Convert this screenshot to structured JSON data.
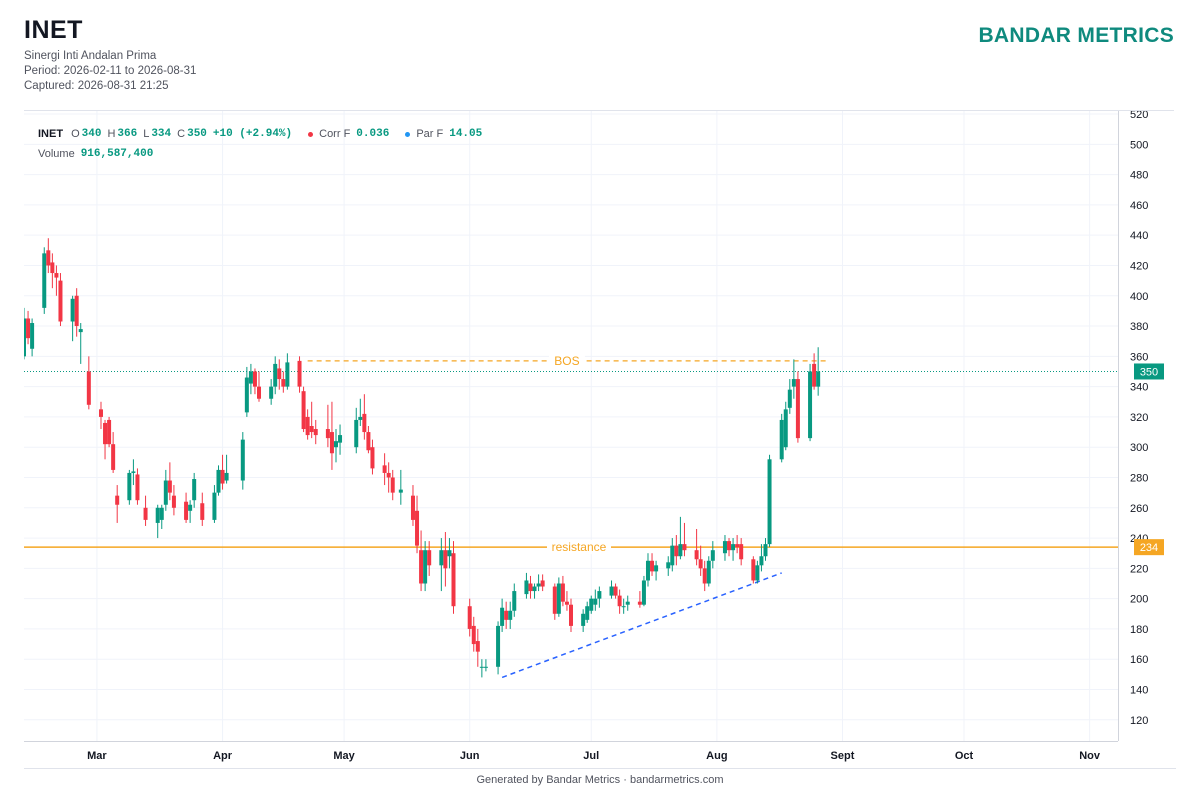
{
  "header": {
    "ticker": "INET",
    "company": "Sinergi Inti Andalan Prima",
    "period": "Period: 2026-02-11 to 2026-08-31",
    "captured": "Captured: 2026-08-31 21:25",
    "brand": "BANDAR METRICS"
  },
  "legend": {
    "symbol": "INET",
    "o_label": "O",
    "o_value": "340",
    "h_label": "H",
    "h_value": "366",
    "l_label": "L",
    "l_value": "334",
    "c_label": "C",
    "c_value": "350",
    "change": "+10 (+2.94%)",
    "corr_label": "Corr F",
    "corr_value": "0.036",
    "par_label": "Par F",
    "par_value": "14.05",
    "volume_label": "Volume",
    "volume_value": "916,587,400"
  },
  "footer": {
    "text": "Generated by Bandar Metrics · bandarmetrics.com"
  },
  "colors": {
    "up": "#089981",
    "down": "#f23645",
    "resistance": "#f5a623",
    "bos": "#f5a623",
    "trend": "#2962ff",
    "last": "#089981",
    "brand": "#0f8a7e"
  },
  "chart_data": {
    "type": "candlestick",
    "ylim": [
      106,
      522
    ],
    "yticks": [
      120,
      140,
      160,
      180,
      200,
      220,
      240,
      260,
      280,
      300,
      320,
      340,
      360,
      380,
      400,
      420,
      440,
      460,
      480,
      500,
      520
    ],
    "xlim": [
      "2026-02-11",
      "2026-11-08"
    ],
    "xticks": [
      {
        "date": "2026-03-01",
        "label": "Mar"
      },
      {
        "date": "2026-04-01",
        "label": "Apr"
      },
      {
        "date": "2026-05-01",
        "label": "May"
      },
      {
        "date": "2026-06-01",
        "label": "Jun"
      },
      {
        "date": "2026-07-01",
        "label": "Jul"
      },
      {
        "date": "2026-08-01",
        "label": "Aug"
      },
      {
        "date": "2026-09-01",
        "label": "Sept"
      },
      {
        "date": "2026-10-01",
        "label": "Oct"
      },
      {
        "date": "2026-11-01",
        "label": "Nov"
      }
    ],
    "last_price": 350,
    "resistance": {
      "label": "resistance",
      "value": 234
    },
    "bos": {
      "label": "BOS",
      "value": 357,
      "from": "2026-04-22",
      "to": "2026-08-28"
    },
    "trendline": [
      {
        "date": "2026-06-09",
        "value": 148
      },
      {
        "date": "2026-08-17",
        "value": 217
      }
    ],
    "candles": [
      {
        "d": "2026-02-11",
        "o": 360,
        "h": 392,
        "l": 358,
        "c": 385
      },
      {
        "d": "2026-02-12",
        "o": 385,
        "h": 390,
        "l": 368,
        "c": 372
      },
      {
        "d": "2026-02-13",
        "o": 365,
        "h": 385,
        "l": 360,
        "c": 382
      },
      {
        "d": "2026-02-16",
        "o": 392,
        "h": 432,
        "l": 388,
        "c": 428
      },
      {
        "d": "2026-02-17",
        "o": 430,
        "h": 438,
        "l": 415,
        "c": 420
      },
      {
        "d": "2026-02-18",
        "o": 422,
        "h": 428,
        "l": 405,
        "c": 415
      },
      {
        "d": "2026-02-19",
        "o": 415,
        "h": 420,
        "l": 400,
        "c": 412
      },
      {
        "d": "2026-02-20",
        "o": 410,
        "h": 415,
        "l": 380,
        "c": 383
      },
      {
        "d": "2026-02-23",
        "o": 383,
        "h": 400,
        "l": 370,
        "c": 398
      },
      {
        "d": "2026-02-24",
        "o": 400,
        "h": 405,
        "l": 373,
        "c": 380
      },
      {
        "d": "2026-02-25",
        "o": 376,
        "h": 382,
        "l": 355,
        "c": 378
      },
      {
        "d": "2026-02-27",
        "o": 350,
        "h": 360,
        "l": 325,
        "c": 328
      },
      {
        "d": "2026-03-02",
        "o": 325,
        "h": 330,
        "l": 312,
        "c": 320
      },
      {
        "d": "2026-03-03",
        "o": 316,
        "h": 318,
        "l": 292,
        "c": 302
      },
      {
        "d": "2026-03-04",
        "o": 318,
        "h": 320,
        "l": 300,
        "c": 302
      },
      {
        "d": "2026-03-05",
        "o": 302,
        "h": 310,
        "l": 283,
        "c": 285
      },
      {
        "d": "2026-03-06",
        "o": 268,
        "h": 275,
        "l": 250,
        "c": 262
      },
      {
        "d": "2026-03-09",
        "o": 265,
        "h": 285,
        "l": 262,
        "c": 283
      },
      {
        "d": "2026-03-10",
        "o": 283,
        "h": 292,
        "l": 275,
        "c": 284
      },
      {
        "d": "2026-03-11",
        "o": 282,
        "h": 286,
        "l": 262,
        "c": 265
      },
      {
        "d": "2026-03-13",
        "o": 260,
        "h": 268,
        "l": 248,
        "c": 252
      },
      {
        "d": "2026-03-16",
        "o": 250,
        "h": 262,
        "l": 240,
        "c": 260
      },
      {
        "d": "2026-03-17",
        "o": 252,
        "h": 262,
        "l": 246,
        "c": 260
      },
      {
        "d": "2026-03-18",
        "o": 262,
        "h": 285,
        "l": 258,
        "c": 278
      },
      {
        "d": "2026-03-19",
        "o": 278,
        "h": 290,
        "l": 265,
        "c": 270
      },
      {
        "d": "2026-03-20",
        "o": 268,
        "h": 275,
        "l": 255,
        "c": 260
      },
      {
        "d": "2026-03-23",
        "o": 264,
        "h": 270,
        "l": 250,
        "c": 252
      },
      {
        "d": "2026-03-24",
        "o": 258,
        "h": 265,
        "l": 250,
        "c": 262
      },
      {
        "d": "2026-03-25",
        "o": 265,
        "h": 283,
        "l": 260,
        "c": 279
      },
      {
        "d": "2026-03-27",
        "o": 263,
        "h": 270,
        "l": 248,
        "c": 252
      },
      {
        "d": "2026-03-30",
        "o": 252,
        "h": 275,
        "l": 250,
        "c": 270
      },
      {
        "d": "2026-03-31",
        "o": 270,
        "h": 288,
        "l": 268,
        "c": 285
      },
      {
        "d": "2026-04-01",
        "o": 285,
        "h": 295,
        "l": 272,
        "c": 276
      },
      {
        "d": "2026-04-02",
        "o": 278,
        "h": 295,
        "l": 276,
        "c": 283
      },
      {
        "d": "2026-04-06",
        "o": 278,
        "h": 310,
        "l": 272,
        "c": 305
      },
      {
        "d": "2026-04-07",
        "o": 323,
        "h": 353,
        "l": 320,
        "c": 346
      },
      {
        "d": "2026-04-08",
        "o": 342,
        "h": 355,
        "l": 335,
        "c": 350
      },
      {
        "d": "2026-04-09",
        "o": 350,
        "h": 352,
        "l": 335,
        "c": 340
      },
      {
        "d": "2026-04-10",
        "o": 340,
        "h": 350,
        "l": 330,
        "c": 332
      },
      {
        "d": "2026-04-13",
        "o": 332,
        "h": 345,
        "l": 328,
        "c": 340
      },
      {
        "d": "2026-04-14",
        "o": 340,
        "h": 360,
        "l": 335,
        "c": 355
      },
      {
        "d": "2026-04-15",
        "o": 352,
        "h": 358,
        "l": 338,
        "c": 345
      },
      {
        "d": "2026-04-16",
        "o": 345,
        "h": 350,
        "l": 336,
        "c": 340
      },
      {
        "d": "2026-04-17",
        "o": 340,
        "h": 362,
        "l": 338,
        "c": 356
      },
      {
        "d": "2026-04-20",
        "o": 357,
        "h": 360,
        "l": 336,
        "c": 340
      },
      {
        "d": "2026-04-21",
        "o": 337,
        "h": 340,
        "l": 310,
        "c": 312
      },
      {
        "d": "2026-04-22",
        "o": 320,
        "h": 325,
        "l": 305,
        "c": 308
      },
      {
        "d": "2026-04-23",
        "o": 314,
        "h": 330,
        "l": 306,
        "c": 310
      },
      {
        "d": "2026-04-24",
        "o": 312,
        "h": 318,
        "l": 302,
        "c": 308
      },
      {
        "d": "2026-04-27",
        "o": 312,
        "h": 328,
        "l": 300,
        "c": 306
      },
      {
        "d": "2026-04-28",
        "o": 310,
        "h": 330,
        "l": 285,
        "c": 296
      },
      {
        "d": "2026-04-29",
        "o": 300,
        "h": 312,
        "l": 290,
        "c": 304
      },
      {
        "d": "2026-04-30",
        "o": 303,
        "h": 315,
        "l": 295,
        "c": 308
      },
      {
        "d": "2026-05-04",
        "o": 300,
        "h": 326,
        "l": 296,
        "c": 318
      },
      {
        "d": "2026-05-05",
        "o": 318,
        "h": 332,
        "l": 314,
        "c": 320
      },
      {
        "d": "2026-05-06",
        "o": 322,
        "h": 335,
        "l": 305,
        "c": 310
      },
      {
        "d": "2026-05-07",
        "o": 310,
        "h": 314,
        "l": 296,
        "c": 298
      },
      {
        "d": "2026-05-08",
        "o": 300,
        "h": 305,
        "l": 282,
        "c": 286
      },
      {
        "d": "2026-05-11",
        "o": 288,
        "h": 296,
        "l": 275,
        "c": 283
      },
      {
        "d": "2026-05-12",
        "o": 283,
        "h": 290,
        "l": 270,
        "c": 280
      },
      {
        "d": "2026-05-13",
        "o": 280,
        "h": 285,
        "l": 265,
        "c": 270
      },
      {
        "d": "2026-05-15",
        "o": 270,
        "h": 285,
        "l": 262,
        "c": 272
      },
      {
        "d": "2026-05-18",
        "o": 268,
        "h": 275,
        "l": 248,
        "c": 252
      },
      {
        "d": "2026-05-19",
        "o": 258,
        "h": 268,
        "l": 230,
        "c": 235
      },
      {
        "d": "2026-05-20",
        "o": 232,
        "h": 245,
        "l": 205,
        "c": 210
      },
      {
        "d": "2026-05-21",
        "o": 210,
        "h": 238,
        "l": 205,
        "c": 232
      },
      {
        "d": "2026-05-22",
        "o": 232,
        "h": 238,
        "l": 215,
        "c": 222
      },
      {
        "d": "2026-05-25",
        "o": 222,
        "h": 240,
        "l": 205,
        "c": 232
      },
      {
        "d": "2026-05-26",
        "o": 232,
        "h": 244,
        "l": 208,
        "c": 220
      },
      {
        "d": "2026-05-27",
        "o": 228,
        "h": 240,
        "l": 220,
        "c": 232
      },
      {
        "d": "2026-05-28",
        "o": 230,
        "h": 238,
        "l": 190,
        "c": 195
      },
      {
        "d": "2026-06-01",
        "o": 195,
        "h": 200,
        "l": 175,
        "c": 180
      },
      {
        "d": "2026-06-02",
        "o": 182,
        "h": 188,
        "l": 165,
        "c": 170
      },
      {
        "d": "2026-06-03",
        "o": 172,
        "h": 180,
        "l": 155,
        "c": 165
      },
      {
        "d": "2026-06-04",
        "o": 155,
        "h": 160,
        "l": 148,
        "c": 155
      },
      {
        "d": "2026-06-05",
        "o": 155,
        "h": 160,
        "l": 152,
        "c": 155
      },
      {
        "d": "2026-06-08",
        "o": 155,
        "h": 185,
        "l": 150,
        "c": 182
      },
      {
        "d": "2026-06-09",
        "o": 182,
        "h": 200,
        "l": 178,
        "c": 194
      },
      {
        "d": "2026-06-10",
        "o": 192,
        "h": 198,
        "l": 180,
        "c": 186
      },
      {
        "d": "2026-06-11",
        "o": 186,
        "h": 198,
        "l": 180,
        "c": 192
      },
      {
        "d": "2026-06-12",
        "o": 192,
        "h": 210,
        "l": 188,
        "c": 205
      },
      {
        "d": "2026-06-15",
        "o": 203,
        "h": 217,
        "l": 200,
        "c": 212
      },
      {
        "d": "2026-06-16",
        "o": 210,
        "h": 215,
        "l": 200,
        "c": 205
      },
      {
        "d": "2026-06-17",
        "o": 205,
        "h": 210,
        "l": 200,
        "c": 208
      },
      {
        "d": "2026-06-18",
        "o": 208,
        "h": 216,
        "l": 205,
        "c": 210
      },
      {
        "d": "2026-06-19",
        "o": 212,
        "h": 216,
        "l": 205,
        "c": 208
      },
      {
        "d": "2026-06-22",
        "o": 208,
        "h": 210,
        "l": 186,
        "c": 190
      },
      {
        "d": "2026-06-23",
        "o": 190,
        "h": 214,
        "l": 188,
        "c": 210
      },
      {
        "d": "2026-06-24",
        "o": 210,
        "h": 215,
        "l": 195,
        "c": 198
      },
      {
        "d": "2026-06-25",
        "o": 198,
        "h": 205,
        "l": 192,
        "c": 196
      },
      {
        "d": "2026-06-26",
        "o": 196,
        "h": 200,
        "l": 178,
        "c": 182
      },
      {
        "d": "2026-06-29",
        "o": 182,
        "h": 193,
        "l": 178,
        "c": 190
      },
      {
        "d": "2026-06-30",
        "o": 186,
        "h": 198,
        "l": 184,
        "c": 195
      },
      {
        "d": "2026-07-01",
        "o": 192,
        "h": 202,
        "l": 190,
        "c": 200
      },
      {
        "d": "2026-07-02",
        "o": 196,
        "h": 206,
        "l": 192,
        "c": 200
      },
      {
        "d": "2026-07-03",
        "o": 200,
        "h": 208,
        "l": 194,
        "c": 205
      },
      {
        "d": "2026-07-06",
        "o": 202,
        "h": 212,
        "l": 200,
        "c": 208
      },
      {
        "d": "2026-07-07",
        "o": 208,
        "h": 210,
        "l": 200,
        "c": 202
      },
      {
        "d": "2026-07-08",
        "o": 202,
        "h": 206,
        "l": 190,
        "c": 195
      },
      {
        "d": "2026-07-09",
        "o": 195,
        "h": 200,
        "l": 190,
        "c": 195
      },
      {
        "d": "2026-07-10",
        "o": 196,
        "h": 202,
        "l": 192,
        "c": 198
      },
      {
        "d": "2026-07-13",
        "o": 198,
        "h": 205,
        "l": 194,
        "c": 196
      },
      {
        "d": "2026-07-14",
        "o": 196,
        "h": 215,
        "l": 195,
        "c": 212
      },
      {
        "d": "2026-07-15",
        "o": 212,
        "h": 230,
        "l": 208,
        "c": 225
      },
      {
        "d": "2026-07-16",
        "o": 225,
        "h": 230,
        "l": 215,
        "c": 218
      },
      {
        "d": "2026-07-17",
        "o": 218,
        "h": 225,
        "l": 212,
        "c": 222
      },
      {
        "d": "2026-07-20",
        "o": 220,
        "h": 228,
        "l": 215,
        "c": 224
      },
      {
        "d": "2026-07-21",
        "o": 222,
        "h": 240,
        "l": 218,
        "c": 235
      },
      {
        "d": "2026-07-22",
        "o": 235,
        "h": 242,
        "l": 222,
        "c": 228
      },
      {
        "d": "2026-07-23",
        "o": 228,
        "h": 254,
        "l": 226,
        "c": 236
      },
      {
        "d": "2026-07-24",
        "o": 236,
        "h": 250,
        "l": 228,
        "c": 232
      },
      {
        "d": "2026-07-27",
        "o": 232,
        "h": 246,
        "l": 222,
        "c": 226
      },
      {
        "d": "2026-07-28",
        "o": 226,
        "h": 235,
        "l": 215,
        "c": 220
      },
      {
        "d": "2026-07-29",
        "o": 220,
        "h": 225,
        "l": 205,
        "c": 210
      },
      {
        "d": "2026-07-30",
        "o": 210,
        "h": 228,
        "l": 208,
        "c": 225
      },
      {
        "d": "2026-07-31",
        "o": 225,
        "h": 238,
        "l": 220,
        "c": 232
      },
      {
        "d": "2026-08-03",
        "o": 230,
        "h": 242,
        "l": 225,
        "c": 238
      },
      {
        "d": "2026-08-04",
        "o": 238,
        "h": 240,
        "l": 228,
        "c": 232
      },
      {
        "d": "2026-08-05",
        "o": 232,
        "h": 240,
        "l": 225,
        "c": 236
      },
      {
        "d": "2026-08-06",
        "o": 236,
        "h": 242,
        "l": 230,
        "c": 234
      },
      {
        "d": "2026-08-07",
        "o": 236,
        "h": 240,
        "l": 222,
        "c": 226
      },
      {
        "d": "2026-08-10",
        "o": 226,
        "h": 228,
        "l": 210,
        "c": 212
      },
      {
        "d": "2026-08-11",
        "o": 212,
        "h": 225,
        "l": 210,
        "c": 222
      },
      {
        "d": "2026-08-12",
        "o": 222,
        "h": 236,
        "l": 218,
        "c": 228
      },
      {
        "d": "2026-08-13",
        "o": 228,
        "h": 240,
        "l": 225,
        "c": 236
      },
      {
        "d": "2026-08-14",
        "o": 236,
        "h": 295,
        "l": 234,
        "c": 292
      },
      {
        "d": "2026-08-17",
        "o": 292,
        "h": 322,
        "l": 290,
        "c": 318
      },
      {
        "d": "2026-08-18",
        "o": 300,
        "h": 330,
        "l": 298,
        "c": 325
      },
      {
        "d": "2026-08-19",
        "o": 326,
        "h": 345,
        "l": 322,
        "c": 338
      },
      {
        "d": "2026-08-20",
        "o": 340,
        "h": 358,
        "l": 332,
        "c": 345
      },
      {
        "d": "2026-08-21",
        "o": 345,
        "h": 350,
        "l": 303,
        "c": 306
      },
      {
        "d": "2026-08-24",
        "o": 306,
        "h": 355,
        "l": 304,
        "c": 350
      },
      {
        "d": "2026-08-25",
        "o": 355,
        "h": 362,
        "l": 338,
        "c": 340
      },
      {
        "d": "2026-08-26",
        "o": 340,
        "h": 366,
        "l": 334,
        "c": 350
      }
    ]
  }
}
